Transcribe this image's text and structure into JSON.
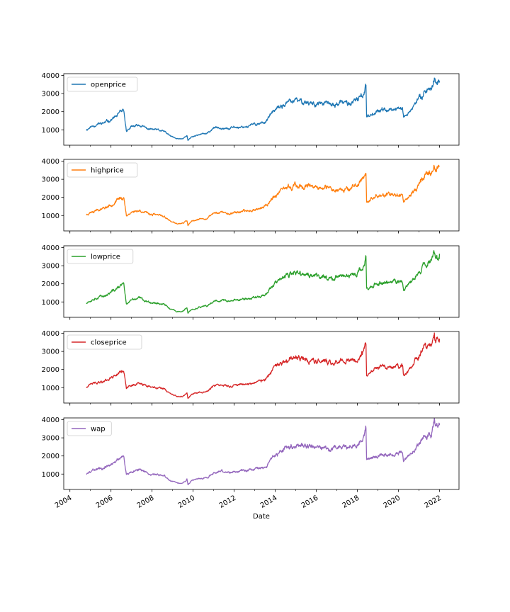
{
  "chart_data": {
    "type": "line",
    "xlabel": "Date",
    "xlim": [
      2003.7,
      2022.95
    ],
    "x_ticks": [
      2004,
      2006,
      2008,
      2010,
      2012,
      2014,
      2016,
      2018,
      2020,
      2022
    ],
    "x_tick_labels": [
      "2004",
      "2006",
      "2008",
      "2010",
      "2012",
      "2014",
      "2016",
      "2018",
      "2020",
      "2022"
    ],
    "ylim": [
      150,
      4100
    ],
    "y_ticks": [
      1000,
      2000,
      3000,
      4000
    ],
    "y_tick_labels": [
      "1000",
      "2000",
      "3000",
      "4000"
    ],
    "legend_position": "top-left",
    "grid": false,
    "base_series": {
      "x": [
        2004.8,
        2005.0,
        2005.3,
        2005.6,
        2005.9,
        2006.2,
        2006.5,
        2006.62,
        2006.68,
        2006.75,
        2007.0,
        2007.4,
        2007.8,
        2008.2,
        2008.6,
        2008.9,
        2009.2,
        2009.5,
        2009.7,
        2009.75,
        2009.9,
        2010.3,
        2010.7,
        2011.0,
        2011.4,
        2011.8,
        2012.0,
        2012.2,
        2012.6,
        2013.0,
        2013.4,
        2013.6,
        2013.9,
        2014.2,
        2014.6,
        2015.0,
        2015.5,
        2016.0,
        2016.4,
        2016.8,
        2017.2,
        2017.6,
        2018.0,
        2018.3,
        2018.42,
        2018.45,
        2018.8,
        2019.2,
        2019.6,
        2019.9,
        2020.2,
        2020.25,
        2020.6,
        2021.0,
        2021.3,
        2021.6,
        2021.75,
        2021.8,
        2022.0
      ],
      "values": [
        1000,
        1150,
        1300,
        1350,
        1500,
        1700,
        1950,
        2000,
        1500,
        950,
        1150,
        1250,
        1050,
        1000,
        900,
        650,
        500,
        520,
        700,
        400,
        600,
        750,
        800,
        1100,
        1150,
        1050,
        1150,
        1150,
        1200,
        1300,
        1400,
        1550,
        2000,
        2200,
        2500,
        2600,
        2550,
        2450,
        2450,
        2350,
        2500,
        2450,
        2600,
        3000,
        3500,
        1750,
        1950,
        2100,
        2100,
        2150,
        2200,
        1700,
        2100,
        2700,
        3200,
        3300,
        3900,
        3500,
        3700
      ]
    },
    "series": [
      {
        "name": "openprice",
        "color": "#1f77b4"
      },
      {
        "name": "highprice",
        "color": "#ff7f0e"
      },
      {
        "name": "lowprice",
        "color": "#2ca02c"
      },
      {
        "name": "closeprice",
        "color": "#d62728"
      },
      {
        "name": "wap",
        "color": "#9467bd"
      }
    ]
  }
}
